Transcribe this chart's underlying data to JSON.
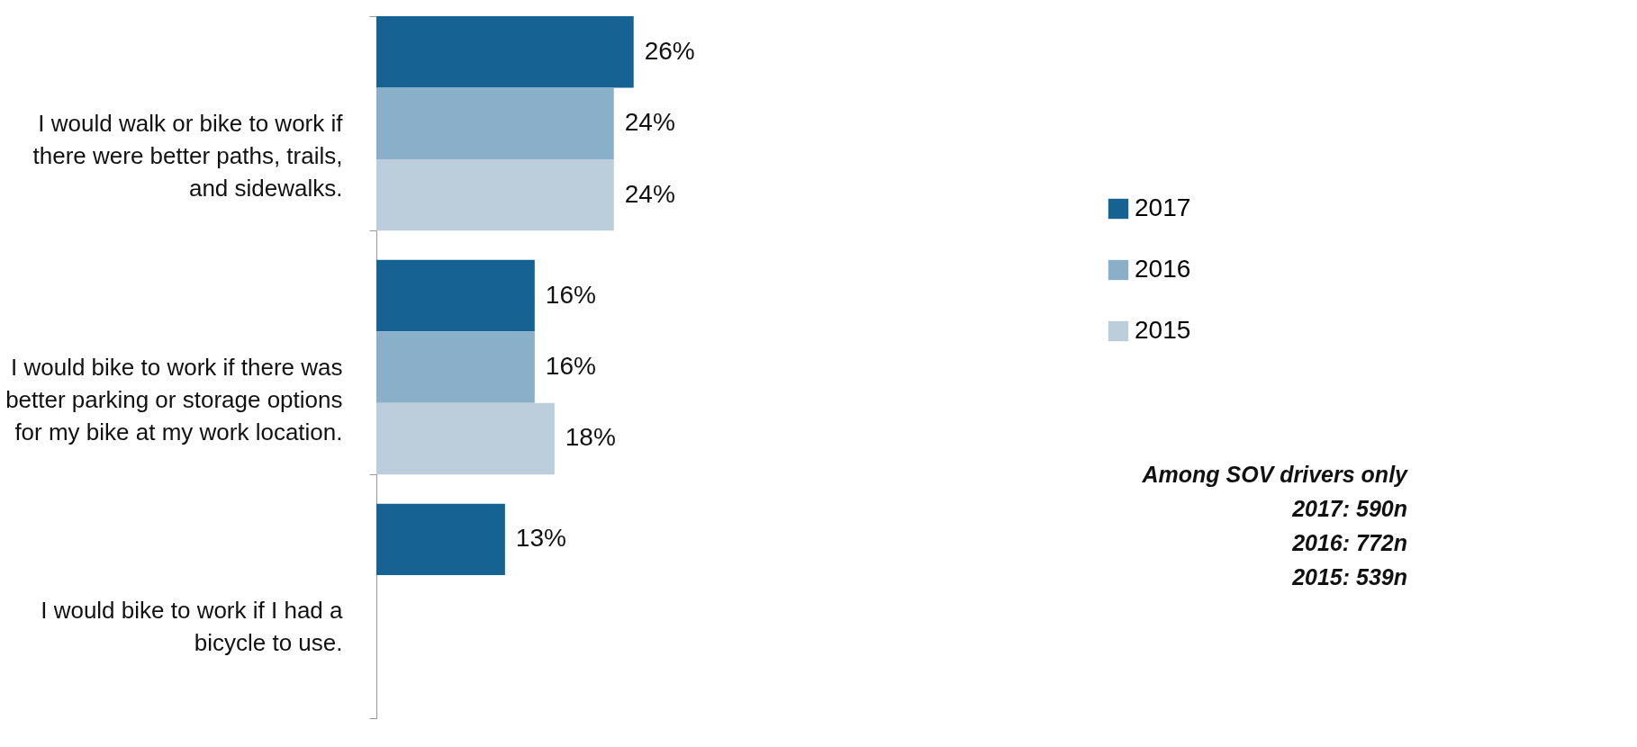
{
  "chart_data": {
    "type": "bar",
    "orientation": "horizontal",
    "categories": [
      "I would walk or bike to work if there were better paths, trails, and sidewalks.",
      "I would bike to work if there was better parking or storage options for my bike at my work location.",
      "I would bike to work if I had a bicycle to use."
    ],
    "series": [
      {
        "name": "2017",
        "color": "#156293",
        "values": [
          26,
          16,
          13
        ],
        "value_labels": [
          "26%",
          "16%",
          "13%"
        ]
      },
      {
        "name": "2016",
        "color": "#8aafc9",
        "values": [
          24,
          16,
          null
        ],
        "value_labels": [
          "24%",
          "16%",
          null
        ]
      },
      {
        "name": "2015",
        "color": "#bccddc",
        "values": [
          24,
          18,
          null
        ],
        "value_labels": [
          "24%",
          "18%",
          null
        ]
      }
    ],
    "legend": "right",
    "annotations": [
      "Among SOV drivers only",
      "2017: 590n",
      "2016: 772n",
      "2015: 539n"
    ]
  }
}
